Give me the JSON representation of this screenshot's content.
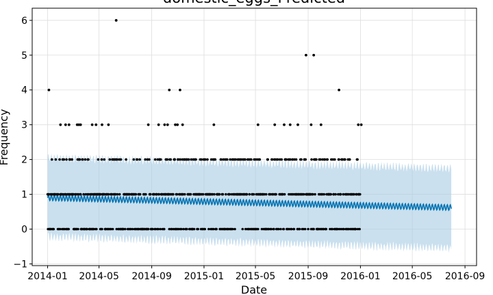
{
  "chart_data": {
    "type": "scatter",
    "title": "domestic_eggs_Predicted",
    "xlabel": "Date",
    "ylabel": "Frequency",
    "x_tick_labels": [
      "2014-01",
      "2014-05",
      "2014-09",
      "2015-01",
      "2015-05",
      "2015-09",
      "2016-01",
      "2016-05",
      "2016-09"
    ],
    "y_tick_labels": [
      "−1",
      "0",
      "1",
      "2",
      "3",
      "4",
      "5",
      "6"
    ],
    "xlim": [
      "2013-11-26",
      "2016-09-28"
    ],
    "ylim": [
      -1.05,
      6.35
    ],
    "grid": true,
    "colors": {
      "observed": "#000000",
      "forecast": "#0072B2",
      "interval": "#a6cbe3",
      "grid": "#dddddd"
    },
    "forecast": {
      "start": "2014-01-01",
      "end": "2016-07-31",
      "yhat_start": 0.9,
      "yhat_end": 0.62,
      "weekly_amplitude": 0.08,
      "upper_start": 2.05,
      "upper_end": 1.75,
      "lower_start": -0.22,
      "lower_end": -0.55
    },
    "observed_range": [
      "2014-01-01",
      "2015-12-31"
    ],
    "observed_levels": [
      0,
      1,
      2
    ],
    "outliers": [
      {
        "x": "2014-01-04",
        "y": 4
      },
      {
        "x": "2014-01-31",
        "y": 3
      },
      {
        "x": "2014-02-12",
        "y": 3
      },
      {
        "x": "2014-02-20",
        "y": 3
      },
      {
        "x": "2014-03-11",
        "y": 3
      },
      {
        "x": "2014-03-15",
        "y": 3
      },
      {
        "x": "2014-03-19",
        "y": 3
      },
      {
        "x": "2014-04-15",
        "y": 3
      },
      {
        "x": "2014-04-24",
        "y": 3
      },
      {
        "x": "2014-05-08",
        "y": 3
      },
      {
        "x": "2014-05-23",
        "y": 3
      },
      {
        "x": "2014-06-10",
        "y": 6
      },
      {
        "x": "2014-08-24",
        "y": 3
      },
      {
        "x": "2014-09-17",
        "y": 3
      },
      {
        "x": "2014-10-01",
        "y": 3
      },
      {
        "x": "2014-10-08",
        "y": 3
      },
      {
        "x": "2014-10-12",
        "y": 4
      },
      {
        "x": "2014-10-26",
        "y": 3
      },
      {
        "x": "2014-10-31",
        "y": 3
      },
      {
        "x": "2014-11-06",
        "y": 4
      },
      {
        "x": "2014-11-12",
        "y": 3
      },
      {
        "x": "2015-01-24",
        "y": 3
      },
      {
        "x": "2015-05-07",
        "y": 3
      },
      {
        "x": "2015-06-15",
        "y": 3
      },
      {
        "x": "2015-07-07",
        "y": 3
      },
      {
        "x": "2015-07-21",
        "y": 3
      },
      {
        "x": "2015-08-08",
        "y": 3
      },
      {
        "x": "2015-08-27",
        "y": 5
      },
      {
        "x": "2015-09-08",
        "y": 3
      },
      {
        "x": "2015-09-14",
        "y": 5
      },
      {
        "x": "2015-10-01",
        "y": 3
      },
      {
        "x": "2015-11-12",
        "y": 4
      },
      {
        "x": "2015-12-27",
        "y": 3
      },
      {
        "x": "2016-01-03",
        "y": 3
      }
    ]
  }
}
